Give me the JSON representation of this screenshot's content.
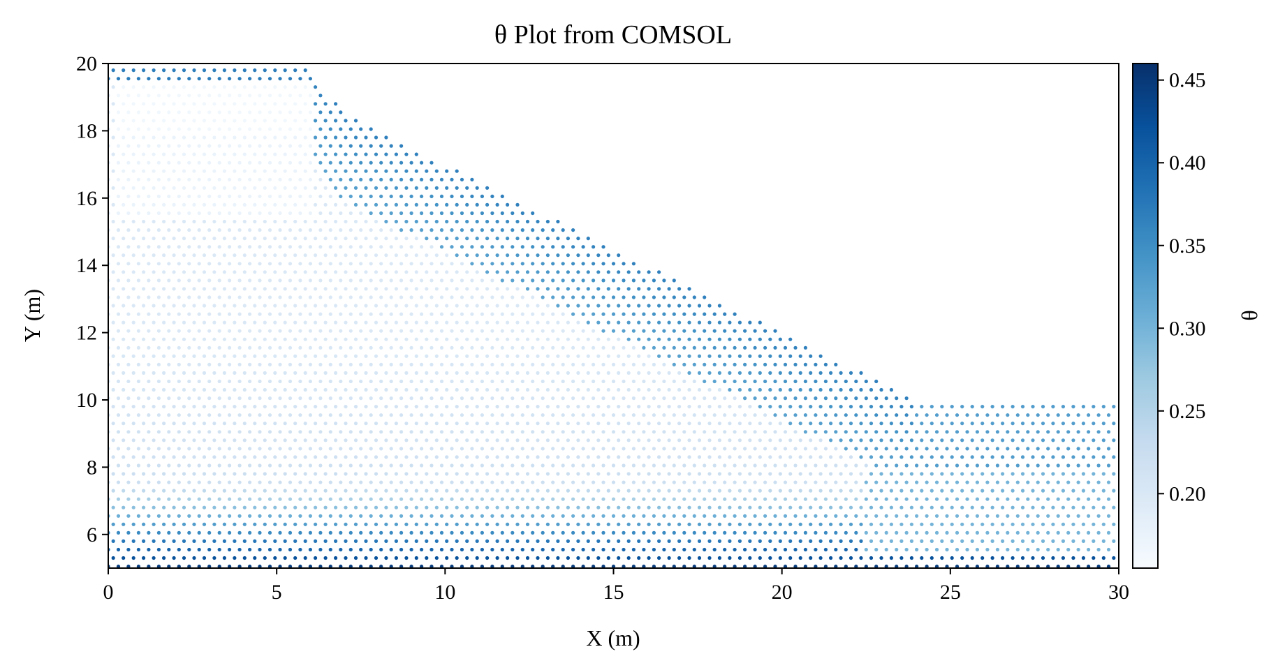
{
  "chart_data": {
    "type": "scatter",
    "title": "θ Plot from COMSOL",
    "xlabel": "X (m)",
    "ylabel": "Y (m)",
    "xlim": [
      0,
      30
    ],
    "ylim": [
      5,
      20
    ],
    "xticks": [
      "0",
      "5",
      "10",
      "15",
      "20",
      "25",
      "30"
    ],
    "yticks": [
      "6",
      "8",
      "10",
      "12",
      "14",
      "16",
      "18",
      "20"
    ],
    "grid": false,
    "colorbar": {
      "label": "θ",
      "range": [
        0.155,
        0.46
      ],
      "ticks": [
        "0.20",
        "0.25",
        "0.30",
        "0.35",
        "0.40",
        "0.45"
      ],
      "colormap": "Blues",
      "colors": [
        "#f7fbff",
        "#deebf7",
        "#c6dbef",
        "#9ecae1",
        "#6baed6",
        "#4292c6",
        "#2171b5",
        "#08519c",
        "#08306b"
      ]
    },
    "domain_boundary": {
      "x": [
        0,
        5.8,
        7,
        24,
        30,
        30,
        0
      ],
      "y": [
        20,
        20,
        18.5,
        10,
        10,
        5,
        5
      ]
    },
    "regions": [
      {
        "x_range": [
          0,
          6
        ],
        "y_range": [
          19.5,
          20
        ],
        "theta": 0.37
      },
      {
        "x_range": [
          0.3,
          6
        ],
        "y_range": [
          18,
          19.4
        ],
        "theta": 0.165
      },
      {
        "x_range": [
          0.3,
          6
        ],
        "y_range": [
          15.5,
          18
        ],
        "theta": 0.175
      },
      {
        "x_range": [
          24,
          30
        ],
        "y_range": [
          8,
          10
        ],
        "theta": 0.33
      },
      {
        "x_range": [
          22.5,
          30
        ],
        "y_range": [
          5.5,
          8
        ],
        "theta": 0.3
      }
    ],
    "slope_band": {
      "start": [
        5.8,
        20
      ],
      "end": [
        24,
        10
      ],
      "thickness_m": 2.6,
      "theta_range": [
        0.32,
        0.4
      ]
    },
    "bottom_zone": {
      "y_range": [
        5,
        7.5
      ],
      "theta_range": [
        0.22,
        0.45
      ]
    }
  }
}
